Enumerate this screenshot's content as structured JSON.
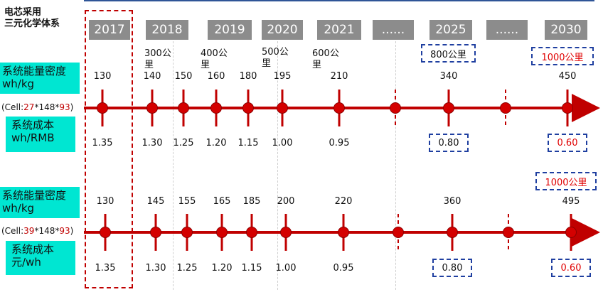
{
  "title": [
    "电芯采用",
    "三元化学体系"
  ],
  "years": [
    "2017",
    "2018",
    "2019",
    "2020",
    "2021",
    "......",
    "2025",
    "......",
    "2030"
  ],
  "range_labels": [
    "300公里",
    "400公里",
    "500公里",
    "600公里",
    "800公里",
    "1000公里"
  ],
  "row1": {
    "energy_label": [
      "系统能量密度",
      "wh/kg"
    ],
    "cell_prefix": "(Cell:",
    "cell_a": "27",
    "cell_mid": "*148*",
    "cell_b": "93",
    "cell_suffix": ")",
    "cost_label": [
      "系统成本",
      "wh/RMB"
    ],
    "energy": [
      "130",
      "140",
      "150",
      "160",
      "180",
      "195",
      "210",
      "340",
      "450"
    ],
    "cost": [
      "1.35",
      "1.30",
      "1.25",
      "1.20",
      "1.15",
      "1.00",
      "0.95",
      "0.80",
      "0.60"
    ]
  },
  "row2": {
    "range_2030": "1000公里",
    "energy_label": [
      "系统能量密度",
      "wh/kg"
    ],
    "cell_prefix": "(Cell:",
    "cell_a": "39",
    "cell_mid": "*148*",
    "cell_b": "93",
    "cell_suffix": ")",
    "cost_label": [
      "系统成本",
      "元/wh"
    ],
    "energy": [
      "130",
      "145",
      "155",
      "165",
      "185",
      "200",
      "220",
      "360",
      "495"
    ],
    "cost": [
      "1.35",
      "1.30",
      "1.25",
      "1.20",
      "1.15",
      "1.00",
      "0.95",
      "0.80",
      "0.60"
    ]
  },
  "colors": {
    "axis": "#c00000",
    "node": "#d40000",
    "label_bg": "#00e6d2",
    "year_bg": "#8c8c8c",
    "box_border": "#1f3fa0",
    "accent_red": "#e00000"
  }
}
